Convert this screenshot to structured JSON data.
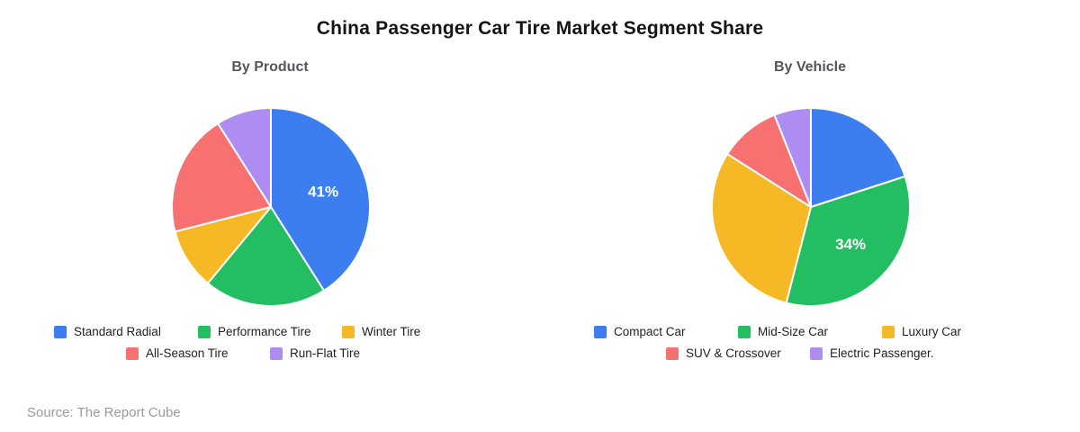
{
  "title": "China Passenger Car Tire Market Segment Share",
  "source_caption": "Source: The Report Cube",
  "chart_data": [
    {
      "type": "pie",
      "title": "By Product",
      "labels": [
        "Standard Radial",
        "Performance Tire",
        "Winter Tire",
        "All-Season Tire",
        "Run-Flat Tire"
      ],
      "values": [
        41,
        20,
        10,
        20,
        9
      ],
      "unit": "%",
      "colors": [
        "#3C7EF0",
        "#23BE62",
        "#F5B926",
        "#F87171",
        "#AE8DF3"
      ],
      "data_labels": [
        "41%",
        null,
        null,
        null,
        null
      ],
      "start_angle": "top",
      "direction": "clockwise",
      "legend_position": "bottom"
    },
    {
      "type": "pie",
      "title": "By Vehicle",
      "labels": [
        "Compact Car",
        "Mid-Size Car",
        "Luxury Car",
        "SUV & Crossover",
        "Electric Passenger."
      ],
      "values": [
        20,
        34,
        30,
        10,
        6
      ],
      "unit": "%",
      "colors": [
        "#3C7EF0",
        "#23BE62",
        "#F5B926",
        "#F87171",
        "#AE8DF3"
      ],
      "data_labels": [
        null,
        "34%",
        null,
        null,
        null
      ],
      "start_angle": "top",
      "direction": "clockwise",
      "legend_position": "bottom"
    }
  ]
}
